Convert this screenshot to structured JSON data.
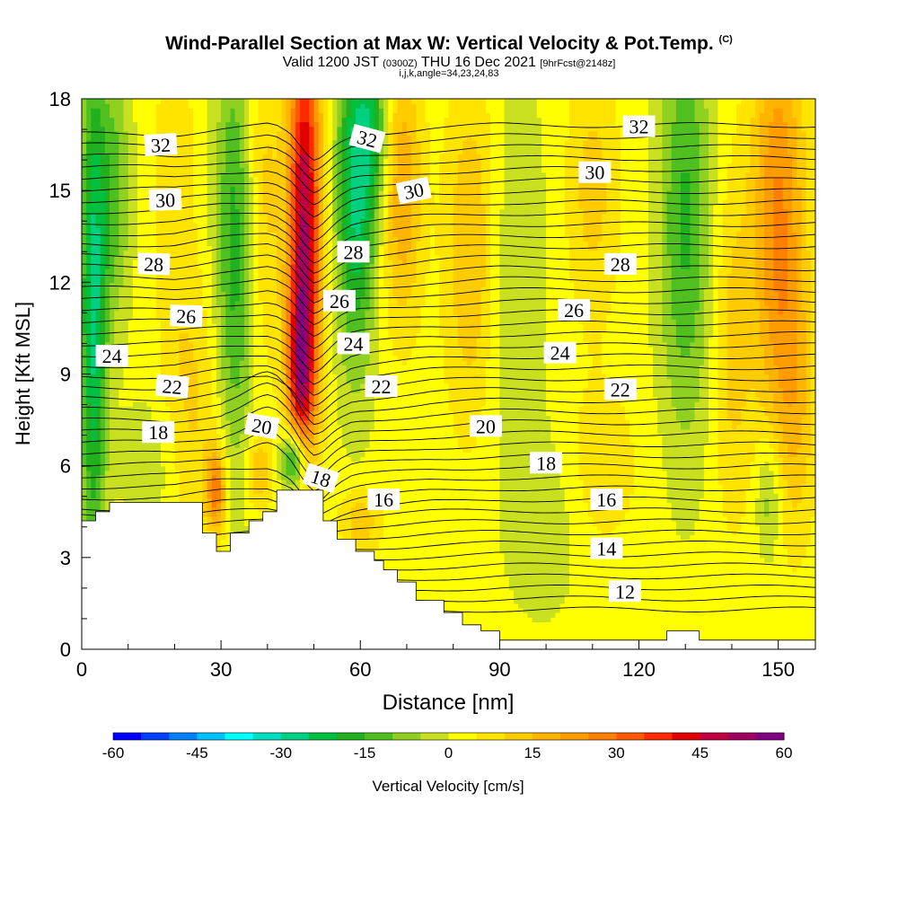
{
  "chart_data": {
    "type": "heatmap",
    "title": "Wind-Parallel Section at Max W: Vertical Velocity & Pot.Temp.",
    "title_suffix": "(C)",
    "subtitle_main": "Valid 1200 JST",
    "subtitle_z": "(0300Z)",
    "subtitle_date": "THU 16 Dec 2021",
    "subtitle_fcst": "[9hrFcst@2148z]",
    "subtitle2": "i,j,k,angle=34,23,24,83",
    "xlabel": "Distance [nm]",
    "ylabel": "Height [Kft MSL]",
    "xlim": [
      0,
      158
    ],
    "ylim": [
      0,
      18
    ],
    "x_ticks": [
      0,
      30,
      60,
      90,
      120,
      150
    ],
    "x_tick_labels": [
      "0",
      "30",
      "60",
      "90",
      "120",
      "150"
    ],
    "y_ticks": [
      0,
      3,
      6,
      9,
      12,
      15,
      18
    ],
    "y_tick_labels": [
      "0",
      "3",
      "6",
      "9",
      "12",
      "15",
      "18"
    ],
    "colorbar": {
      "label": "Vertical Velocity [cm/s]",
      "min": -60,
      "max": 60,
      "step": 5,
      "tick_labels": [
        "-60",
        "-45",
        "-30",
        "-15",
        "0",
        "15",
        "30",
        "45",
        "60"
      ],
      "colors": [
        "#0000ff",
        "#0040ff",
        "#0080ff",
        "#00c0ff",
        "#00ffff",
        "#00e0c0",
        "#00d080",
        "#00c040",
        "#20b020",
        "#50c020",
        "#90d020",
        "#c8e020",
        "#ffff00",
        "#ffe400",
        "#ffcc00",
        "#ffb400",
        "#ff9c00",
        "#ff8000",
        "#ff5a00",
        "#ff2a00",
        "#e00000",
        "#c00040",
        "#a00060",
        "#800080"
      ]
    },
    "terrain_profile": {
      "x": [
        0,
        3,
        3,
        6,
        6,
        26,
        26,
        29,
        29,
        32,
        32,
        36,
        36,
        39,
        39,
        42,
        42,
        52,
        52,
        55,
        55,
        59,
        59,
        63,
        63,
        65,
        65,
        68,
        68,
        72,
        72,
        78,
        78,
        82,
        82,
        86,
        86,
        90,
        90,
        126,
        126,
        133,
        133,
        158
      ],
      "y": [
        4.2,
        4.2,
        4.5,
        4.5,
        4.8,
        4.8,
        3.8,
        3.8,
        3.2,
        3.2,
        3.8,
        3.8,
        4.2,
        4.2,
        4.5,
        4.5,
        5.2,
        5.2,
        4.2,
        4.2,
        3.6,
        3.6,
        3.2,
        3.2,
        2.9,
        2.9,
        2.6,
        2.6,
        2.2,
        2.2,
        1.6,
        1.6,
        1.2,
        1.2,
        0.8,
        0.8,
        0.6,
        0.6,
        0.3,
        0.3,
        0.6,
        0.6,
        0.3,
        0.3
      ]
    },
    "w_features": [
      {
        "x": 2.5,
        "y": 11,
        "sx": 2.0,
        "sy": 6,
        "value": -28
      },
      {
        "x": 7,
        "y": 15,
        "sx": 2.5,
        "sy": 3,
        "value": -14
      },
      {
        "x": 20,
        "y": 15,
        "sx": 3.0,
        "sy": 5,
        "value": 7
      },
      {
        "x": 33,
        "y": 13,
        "sx": 3.0,
        "sy": 5,
        "value": -20
      },
      {
        "x": 39,
        "y": 15,
        "sx": 3.0,
        "sy": 4,
        "value": 10
      },
      {
        "x": 48,
        "y": 14,
        "sx": 2.5,
        "sy": 5,
        "value": 48
      },
      {
        "x": 47,
        "y": 9,
        "sx": 2.0,
        "sy": 2,
        "value": 28
      },
      {
        "x": 59,
        "y": 15,
        "sx": 3.0,
        "sy": 4,
        "value": -28
      },
      {
        "x": 63,
        "y": 17,
        "sx": 2.5,
        "sy": 2,
        "value": -15
      },
      {
        "x": 46,
        "y": 6.2,
        "sx": 2.0,
        "sy": 0.8,
        "value": -32
      },
      {
        "x": 69,
        "y": 15,
        "sx": 3.0,
        "sy": 3,
        "value": 18
      },
      {
        "x": 84,
        "y": 13,
        "sx": 4.0,
        "sy": 4,
        "value": 14
      },
      {
        "x": 93,
        "y": 12,
        "sx": 5.0,
        "sy": 5,
        "value": -7
      },
      {
        "x": 110,
        "y": 15,
        "sx": 4.0,
        "sy": 3,
        "value": 10
      },
      {
        "x": 130,
        "y": 14,
        "sx": 4.0,
        "sy": 5,
        "value": -18
      },
      {
        "x": 140,
        "y": 10,
        "sx": 3.0,
        "sy": 4,
        "value": 10
      },
      {
        "x": 150,
        "y": 14,
        "sx": 4.0,
        "sy": 5,
        "value": 24
      },
      {
        "x": 154,
        "y": 8,
        "sx": 3.0,
        "sy": 3,
        "value": 10
      },
      {
        "x": 148,
        "y": 5,
        "sx": 2.0,
        "sy": 1.5,
        "value": -12
      },
      {
        "x": 29,
        "y": 5.2,
        "sx": 1.5,
        "sy": 1.0,
        "value": 26
      },
      {
        "x": 38,
        "y": 5.8,
        "sx": 2.0,
        "sy": 0.8,
        "value": 14
      },
      {
        "x": 60,
        "y": 4.2,
        "sx": 3.0,
        "sy": 0.8,
        "value": 12
      },
      {
        "x": 100,
        "y": 4,
        "sx": 5.0,
        "sy": 2,
        "value": -6
      },
      {
        "x": 112,
        "y": 6,
        "sx": 6.0,
        "sy": 2,
        "value": 6
      },
      {
        "x": 25,
        "y": 8,
        "sx": 4.0,
        "sy": 3,
        "value": 8
      },
      {
        "x": 14,
        "y": 6,
        "sx": 4.0,
        "sy": 1.5,
        "value": -6
      }
    ],
    "isentropes": {
      "levels": [
        11,
        11.5,
        12,
        12.5,
        13,
        13.5,
        14,
        14.5,
        15,
        15.5,
        16,
        16.5,
        17,
        17.5,
        18,
        18.5,
        19,
        19.5,
        20,
        20.5,
        21,
        21.5,
        22,
        22.5,
        23,
        23.5,
        24,
        24.5,
        25,
        25.5,
        26,
        26.5,
        27,
        27.5,
        28,
        28.5,
        29,
        29.5,
        30,
        30.5,
        31,
        31.5,
        32,
        32.5,
        33
      ],
      "base_height_x": [
        0,
        20,
        30,
        40,
        45,
        50,
        60,
        75,
        90,
        120,
        158
      ],
      "base_height_y": [
        -0.3,
        -0.3,
        -0.1,
        0.0,
        -0.2,
        -0.6,
        -0.3,
        -0.1,
        0.0,
        0.0,
        0.0
      ]
    },
    "contour_labels": [
      {
        "text": "32",
        "x": 17,
        "y": 16.5,
        "angle": -3
      },
      {
        "text": "30",
        "x": 18,
        "y": 14.7,
        "angle": -2
      },
      {
        "text": "28",
        "x": 15.5,
        "y": 12.6,
        "angle": 2
      },
      {
        "text": "26",
        "x": 22.5,
        "y": 10.9,
        "angle": 2
      },
      {
        "text": "24",
        "x": 6.5,
        "y": 9.6,
        "angle": 0
      },
      {
        "text": "22",
        "x": 19.5,
        "y": 8.6,
        "angle": 5
      },
      {
        "text": "18",
        "x": 16.5,
        "y": 7.1,
        "angle": 0
      },
      {
        "text": "20",
        "x": 38.8,
        "y": 7.3,
        "angle": 10
      },
      {
        "text": "18",
        "x": 51.5,
        "y": 5.6,
        "angle": 18
      },
      {
        "text": "32",
        "x": 61.5,
        "y": 16.7,
        "angle": 15
      },
      {
        "text": "30",
        "x": 71.5,
        "y": 15.0,
        "angle": -12
      },
      {
        "text": "28",
        "x": 58.5,
        "y": 13.0,
        "angle": 0
      },
      {
        "text": "26",
        "x": 55.5,
        "y": 11.4,
        "angle": 0
      },
      {
        "text": "24",
        "x": 58.5,
        "y": 10.0,
        "angle": 0
      },
      {
        "text": "22",
        "x": 64.5,
        "y": 8.6,
        "angle": 0
      },
      {
        "text": "16",
        "x": 65,
        "y": 4.9,
        "angle": 0
      },
      {
        "text": "20",
        "x": 87,
        "y": 7.3,
        "angle": 0
      },
      {
        "text": "18",
        "x": 100,
        "y": 6.1,
        "angle": 0
      },
      {
        "text": "16",
        "x": 113,
        "y": 4.9,
        "angle": 0
      },
      {
        "text": "14",
        "x": 113,
        "y": 3.3,
        "angle": 0
      },
      {
        "text": "12",
        "x": 117,
        "y": 1.9,
        "angle": 0
      },
      {
        "text": "22",
        "x": 116,
        "y": 8.5,
        "angle": 0
      },
      {
        "text": "24",
        "x": 103,
        "y": 9.7,
        "angle": 0
      },
      {
        "text": "26",
        "x": 106,
        "y": 11.1,
        "angle": 0
      },
      {
        "text": "28",
        "x": 116,
        "y": 12.6,
        "angle": 0
      },
      {
        "text": "30",
        "x": 110.5,
        "y": 15.6,
        "angle": 0
      },
      {
        "text": "32",
        "x": 120,
        "y": 17.1,
        "angle": 0
      }
    ]
  }
}
